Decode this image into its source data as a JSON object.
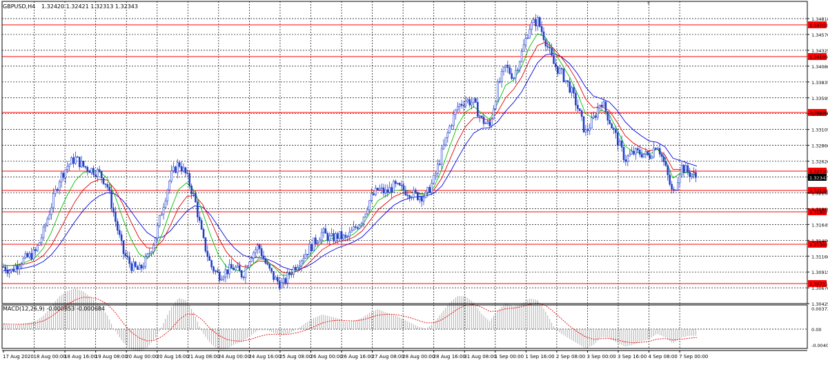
{
  "header": {
    "symbol": "GBPUSD,H4",
    "ohlc": "1.32420 1.32421 1.32313 1.32343"
  },
  "macd_header": {
    "label": "MACD(12,26,9) -0.000853 -0.000684"
  },
  "colors": {
    "background": "#ffffff",
    "grid": "#000000",
    "candle": "#1f3fd0",
    "ma_fast": "#00c000",
    "ma_mid": "#e00000",
    "ma_slow": "#0000e0",
    "level_line": "#ff0000",
    "level_label_bg": "#ff0000",
    "current_label_bg": "#000000",
    "macd_hist": "#b0b0b0",
    "macd_signal": "#e00000"
  },
  "chart_data": {
    "type": "candlestick",
    "symbol": "GBPUSD",
    "timeframe": "H4",
    "x_tick_labels": [
      "17 Aug 2020",
      "18 Aug 00:00",
      "18 Aug 16:00",
      "19 Aug 08:00",
      "20 Aug 00:00",
      "20 Aug 16:00",
      "21 Aug 08:00",
      "24 Aug 00:00",
      "24 Aug 16:00",
      "25 Aug 08:00",
      "26 Aug 00:00",
      "26 Aug 16:00",
      "27 Aug 08:00",
      "28 Aug 00:00",
      "28 Aug 16:00",
      "31 Aug 08:00",
      "1 Sep 00:00",
      "1 Sep 16:00",
      "2 Sep 08:00",
      "3 Sep 00:00",
      "3 Sep 16:00",
      "4 Sep 08:00",
      "7 Sep 00:00"
    ],
    "y_tick_labels": [
      "1.34810",
      "1.34570",
      "1.34325",
      "1.34080",
      "1.33835",
      "1.33595",
      "1.33350",
      "1.33105",
      "1.32860",
      "1.32620",
      "1.32375",
      "1.32130",
      "1.31890",
      "1.31645",
      "1.31400",
      "1.31160",
      "1.30915",
      "1.30670",
      "1.30425"
    ],
    "ylim": [
      1.30425,
      1.3481
    ],
    "price_levels": [
      "1.34703",
      "1.34199",
      "1.33339",
      "1.32730",
      "1.32139",
      "1.31807",
      "1.31302",
      "1.30731"
    ],
    "current_price": "1.32343",
    "close_path": [
      1.3098,
      1.3092,
      1.3105,
      1.3112,
      1.312,
      1.315,
      1.319,
      1.323,
      1.325,
      1.3262,
      1.325,
      1.3245,
      1.324,
      1.3222,
      1.317,
      1.312,
      1.31,
      1.3092,
      1.311,
      1.314,
      1.319,
      1.3235,
      1.3255,
      1.3235,
      1.32,
      1.314,
      1.31,
      1.3085,
      1.3092,
      1.3097,
      1.3085,
      1.3115,
      1.313,
      1.31,
      1.308,
      1.307,
      1.309,
      1.3105,
      1.312,
      1.3135,
      1.315,
      1.314,
      1.3145,
      1.314,
      1.3155,
      1.317,
      1.32,
      1.3215,
      1.321,
      1.322,
      1.3215,
      1.321,
      1.3205,
      1.3205,
      1.323,
      1.327,
      1.331,
      1.334,
      1.335,
      1.3345,
      1.332,
      1.331,
      1.337,
      1.34,
      1.3385,
      1.342,
      1.346,
      1.347,
      1.344,
      1.3405,
      1.339,
      1.337,
      1.334,
      1.33,
      1.332,
      1.335,
      1.332,
      1.329,
      1.326,
      1.327,
      1.327,
      1.3265,
      1.3285,
      1.325,
      1.3205,
      1.325,
      1.324,
      1.3232
    ],
    "ma_fast": [
      1.31,
      1.31,
      1.3102,
      1.3106,
      1.3112,
      1.3126,
      1.315,
      1.318,
      1.3206,
      1.3228,
      1.324,
      1.3243,
      1.3242,
      1.3232,
      1.3205,
      1.317,
      1.314,
      1.3118,
      1.311,
      1.3122,
      1.315,
      1.3185,
      1.3215,
      1.3225,
      1.3212,
      1.318,
      1.3145,
      1.3115,
      1.3098,
      1.3094,
      1.309,
      1.3098,
      1.311,
      1.3108,
      1.3097,
      1.3085,
      1.3086,
      1.3095,
      1.3108,
      1.3122,
      1.3136,
      1.314,
      1.3143,
      1.3142,
      1.3148,
      1.316,
      1.318,
      1.3198,
      1.3205,
      1.3213,
      1.3214,
      1.3212,
      1.3208,
      1.3206,
      1.3218,
      1.3245,
      1.328,
      1.3312,
      1.3332,
      1.334,
      1.333,
      1.332,
      1.3345,
      1.3372,
      1.338,
      1.34,
      1.343,
      1.345,
      1.3445,
      1.3425,
      1.3405,
      1.3385,
      1.336,
      1.333,
      1.3322,
      1.3335,
      1.3328,
      1.3305,
      1.328,
      1.3272,
      1.327,
      1.3267,
      1.3276,
      1.3262,
      1.3232,
      1.324,
      1.324,
      1.3236
    ],
    "ma_mid": [
      1.31,
      1.31,
      1.3101,
      1.3103,
      1.3107,
      1.3115,
      1.313,
      1.3152,
      1.3175,
      1.3197,
      1.3214,
      1.3225,
      1.323,
      1.3229,
      1.3215,
      1.3192,
      1.3166,
      1.3142,
      1.3127,
      1.3126,
      1.3138,
      1.3162,
      1.3188,
      1.3204,
      1.3206,
      1.3192,
      1.3168,
      1.3141,
      1.312,
      1.3107,
      1.3098,
      1.31,
      1.3107,
      1.3106,
      1.3099,
      1.309,
      1.3088,
      1.3092,
      1.31,
      1.3112,
      1.3124,
      1.3131,
      1.3136,
      1.3138,
      1.3143,
      1.3152,
      1.3168,
      1.3184,
      1.3194,
      1.3204,
      1.3209,
      1.321,
      1.3209,
      1.3208,
      1.3214,
      1.3232,
      1.326,
      1.3288,
      1.331,
      1.3323,
      1.3323,
      1.3318,
      1.3332,
      1.3353,
      1.3366,
      1.3384,
      1.341,
      1.3432,
      1.3437,
      1.3428,
      1.3414,
      1.3398,
      1.3378,
      1.3352,
      1.3338,
      1.334,
      1.3334,
      1.3316,
      1.3296,
      1.3285,
      1.3278,
      1.3273,
      1.3276,
      1.3267,
      1.3245,
      1.3245,
      1.3243,
      1.324
    ],
    "ma_slow": [
      1.3092,
      1.3094,
      1.3095,
      1.3097,
      1.31,
      1.3106,
      1.3116,
      1.3131,
      1.3149,
      1.3167,
      1.3183,
      1.3196,
      1.3205,
      1.321,
      1.3208,
      1.3198,
      1.3182,
      1.3165,
      1.315,
      1.3142,
      1.3143,
      1.3153,
      1.3168,
      1.3182,
      1.319,
      1.3188,
      1.3176,
      1.3158,
      1.314,
      1.3126,
      1.3116,
      1.3112,
      1.3112,
      1.311,
      1.3105,
      1.3098,
      1.3094,
      1.3094,
      1.3098,
      1.3105,
      1.3114,
      1.3121,
      1.3127,
      1.3131,
      1.3136,
      1.3143,
      1.3155,
      1.3168,
      1.318,
      1.3191,
      1.3198,
      1.3202,
      1.3204,
      1.3205,
      1.3209,
      1.322,
      1.324,
      1.3262,
      1.3283,
      1.33,
      1.3307,
      1.3308,
      1.3317,
      1.3333,
      1.3346,
      1.3362,
      1.3384,
      1.3406,
      1.3418,
      1.342,
      1.3415,
      1.3405,
      1.339,
      1.337,
      1.3356,
      1.3352,
      1.3347,
      1.3334,
      1.3317,
      1.3305,
      1.3296,
      1.3288,
      1.3286,
      1.3279,
      1.3262,
      1.3258,
      1.3254,
      1.325
    ],
    "macd_ylim": [
      -0.004,
      0.00373
    ],
    "macd_tick_labels": [
      "0.00373",
      "0.00",
      "-0.00400"
    ]
  }
}
